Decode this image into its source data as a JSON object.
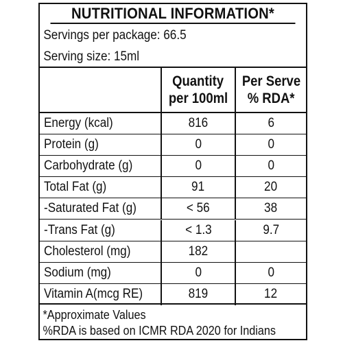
{
  "title": "NUTRITIONAL INFORMATION*",
  "servings_per_package": "Servings per package: 66.5",
  "serving_size": "Serving size: 15ml",
  "table": {
    "headers": {
      "nutrient": "",
      "quantity_line1": "Quantity",
      "quantity_line2": "per 100ml",
      "rda_line1": "Per Serve",
      "rda_line2": "% RDA*"
    },
    "rows": [
      {
        "name": "Energy (kcal)",
        "quantity": "816",
        "rda": "6"
      },
      {
        "name": "Protein (g)",
        "quantity": "0",
        "rda": "0"
      },
      {
        "name": "Carbohydrate (g)",
        "quantity": "0",
        "rda": "0"
      },
      {
        "name": "Total Fat (g)",
        "quantity": "91",
        "rda": "20"
      },
      {
        "name": "-Saturated Fat (g)",
        "quantity": "< 56",
        "rda": "38"
      },
      {
        "name": "-Trans Fat (g)",
        "quantity": "< 1.3",
        "rda": "9.7"
      },
      {
        "name": "Cholesterol (mg)",
        "quantity": "182",
        "rda": ""
      },
      {
        "name": "Sodium (mg)",
        "quantity": "0",
        "rda": "0"
      },
      {
        "name": "Vitamin A(mcg RE)",
        "quantity": "819",
        "rda": "12"
      }
    ]
  },
  "footnotes": {
    "approximate": "*Approximate Values",
    "rda_basis": "%RDA is based on ICMR RDA 2020 for Indians"
  },
  "colors": {
    "text": "#111111",
    "background": "#ffffff",
    "border": "#111111"
  }
}
